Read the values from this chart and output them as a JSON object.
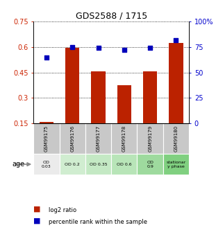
{
  "title": "GDS2588 / 1715",
  "samples": [
    "GSM99175",
    "GSM99176",
    "GSM99177",
    "GSM99178",
    "GSM99179",
    "GSM99180"
  ],
  "log2_ratio": [
    0.158,
    0.595,
    0.455,
    0.375,
    0.455,
    0.625
  ],
  "percentile_rank_pct": [
    65,
    75,
    74,
    72,
    74,
    82
  ],
  "left_yticks": [
    0.15,
    0.3,
    0.45,
    0.6,
    0.75
  ],
  "right_yticks": [
    0,
    25,
    50,
    75,
    100
  ],
  "right_ytick_labels": [
    "0",
    "25",
    "50",
    "75",
    "100%"
  ],
  "bar_color": "#bb2200",
  "dot_color": "#0000bb",
  "age_labels": [
    "OD\n0.03",
    "OD 0.2",
    "OD 0.35",
    "OD 0.6",
    "OD\n0.9",
    "stationar\ny phase"
  ],
  "age_bg_colors": [
    "#ebebeb",
    "#d0edd0",
    "#c4e9c4",
    "#b8e5b8",
    "#9eda9e",
    "#80d080"
  ],
  "sample_bg_color": "#c8c8c8",
  "legend_red_label": "log2 ratio",
  "legend_blue_label": "percentile rank within the sample",
  "ylim_left": [
    0.15,
    0.75
  ],
  "bar_baseline": 0.15
}
